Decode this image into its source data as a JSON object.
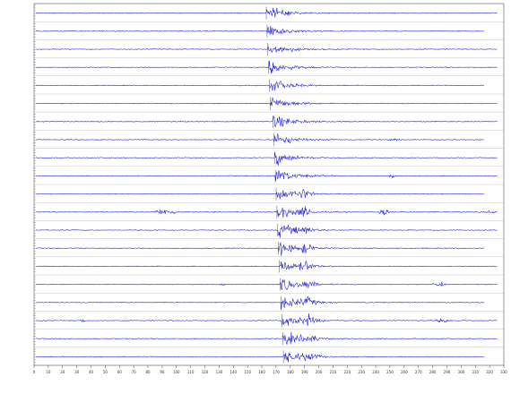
{
  "x_axis": {
    "range": [
      0,
      330
    ],
    "ticks": [
      0,
      10,
      20,
      30,
      40,
      50,
      60,
      70,
      80,
      90,
      100,
      110,
      120,
      130,
      140,
      150,
      160,
      170,
      180,
      190,
      200,
      210,
      220,
      230,
      240,
      250,
      260,
      270,
      280,
      290,
      300,
      310,
      320,
      330
    ]
  }
}
